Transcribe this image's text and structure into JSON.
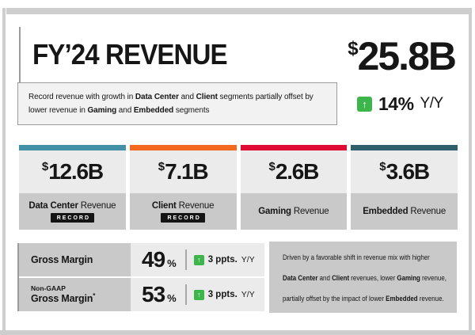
{
  "header": {
    "title": "FY’24 REVENUE",
    "total_currency": "$",
    "total_value": "25.8B",
    "subtitle_parts": [
      {
        "t": "Record revenue with growth in ",
        "b": false
      },
      {
        "t": "Data Center",
        "b": true
      },
      {
        "t": " and ",
        "b": false
      },
      {
        "t": "Client",
        "b": true
      },
      {
        "t": " segments partially offset by",
        "b": false
      },
      {
        "br": true
      },
      {
        "t": "lower revenue in ",
        "b": false
      },
      {
        "t": "Gaming",
        "b": true
      },
      {
        "t": " and ",
        "b": false
      },
      {
        "t": "Embedded",
        "b": true
      },
      {
        "t": " segments",
        "b": false
      }
    ],
    "growth_value": "14%",
    "growth_period": "Y/Y"
  },
  "segments": [
    {
      "currency": "$",
      "value": "12.6B",
      "name": "Data Center",
      "suffix": " Revenue",
      "record": true,
      "color": "#4291a6"
    },
    {
      "currency": "$",
      "value": "7.1B",
      "name": "Client",
      "suffix": " Revenue",
      "record": true,
      "color": "#f2691f"
    },
    {
      "currency": "$",
      "value": "2.6B",
      "name": "Gaming",
      "suffix": " Revenue",
      "record": false,
      "color": "#df0b32"
    },
    {
      "currency": "$",
      "value": "3.6B",
      "name": "Embedded",
      "suffix": " Revenue",
      "record": false,
      "color": "#2f5f6b"
    }
  ],
  "record_label": "RECORD",
  "margins": {
    "rows": [
      {
        "pre": "",
        "label": "Gross Margin",
        "footnote": "",
        "value": "49",
        "unit": "%",
        "change": "3 ppts.",
        "period": "Y/Y"
      },
      {
        "pre": "Non-GAAP",
        "label": "Gross Margin",
        "footnote": "*",
        "value": "53",
        "unit": "%",
        "change": "3 ppts.",
        "period": "Y/Y"
      }
    ],
    "note_parts": [
      {
        "t": "Driven by a favorable shift in revenue mix with higher",
        "b": false
      },
      {
        "br": true
      },
      {
        "t": "Data Center",
        "b": true
      },
      {
        "t": " and ",
        "b": false
      },
      {
        "t": "Client",
        "b": true
      },
      {
        "t": " revenues, lower ",
        "b": false
      },
      {
        "t": "Gaming",
        "b": true
      },
      {
        "t": " revenue,",
        "b": false
      },
      {
        "br": true
      },
      {
        "t": "partially offset by the impact of lower ",
        "b": false
      },
      {
        "t": "Embedded",
        "b": true
      },
      {
        "t": " revenue.",
        "b": false
      }
    ]
  },
  "icons": {
    "up_arrow": "↑"
  },
  "colors": {
    "accent_green": "#3cb54a",
    "teal": "#4291a6",
    "orange": "#f2691f",
    "red": "#df0b32",
    "dark_teal": "#2f5f6b"
  }
}
